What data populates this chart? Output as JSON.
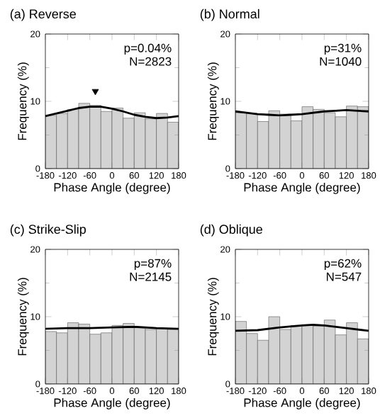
{
  "chart_data": [
    {
      "type": "histogram",
      "title": "(a) Reverse",
      "xlabel": "Phase Angle (degree)",
      "ylabel": "Frequency (%)",
      "annotations": [
        "p=0.04%",
        "N=2823"
      ],
      "bins": [
        -180,
        -150,
        -120,
        -90,
        -60,
        -30,
        0,
        30,
        60,
        90,
        120,
        150,
        180
      ],
      "xlim": [
        -180,
        180
      ],
      "ylim": [
        0,
        20
      ],
      "xticks": [
        -180,
        -120,
        -60,
        0,
        60,
        120,
        180
      ],
      "yticks": [
        0,
        10,
        20
      ],
      "series": [
        {
          "color": "#d3d3d3",
          "values": [
            7.9,
            8.2,
            8.8,
            9.7,
            9.4,
            8.5,
            9.0,
            7.5,
            8.3,
            7.4,
            8.2,
            6.9
          ]
        },
        {
          "type": "line",
          "color": "#000000",
          "x": [
            -180,
            -150,
            -120,
            -90,
            -60,
            -30,
            0,
            30,
            60,
            90,
            120,
            150,
            180
          ],
          "values": [
            7.8,
            8.2,
            8.6,
            9.0,
            9.2,
            9.2,
            8.9,
            8.5,
            8.0,
            7.7,
            7.5,
            7.6,
            7.8
          ]
        },
        {
          "type": "scatter",
          "color": "#000000",
          "marker": "triangle",
          "x": [
            -45
          ],
          "values": [
            11.5
          ]
        }
      ]
    },
    {
      "type": "histogram",
      "title": "(b) Normal",
      "xlabel": "Phase Angle (degree)",
      "ylabel": "Frequency (%)",
      "annotations": [
        "p=31%",
        "N=1040"
      ],
      "bins": [
        -180,
        -150,
        -120,
        -90,
        -60,
        -30,
        0,
        30,
        60,
        90,
        120,
        150,
        180
      ],
      "xlim": [
        -180,
        180
      ],
      "ylim": [
        0,
        20
      ],
      "xticks": [
        -180,
        -120,
        -60,
        0,
        60,
        120,
        180
      ],
      "yticks": [
        0,
        10,
        20
      ],
      "series": [
        {
          "color": "#d3d3d3",
          "values": [
            8.3,
            8.2,
            7.0,
            8.6,
            8.1,
            7.1,
            9.2,
            8.8,
            8.3,
            7.7,
            9.3,
            9.2
          ]
        },
        {
          "type": "line",
          "color": "#000000",
          "x": [
            -180,
            -150,
            -120,
            -90,
            -60,
            -30,
            0,
            30,
            60,
            90,
            120,
            150,
            180
          ],
          "values": [
            8.5,
            8.3,
            8.1,
            8.0,
            7.9,
            8.0,
            8.1,
            8.3,
            8.5,
            8.6,
            8.7,
            8.6,
            8.5
          ]
        }
      ]
    },
    {
      "type": "histogram",
      "title": "(c) Strike-Slip",
      "xlabel": "Phase Angle (degree)",
      "ylabel": "Frequency (%)",
      "annotations": [
        "p=87%",
        "N=2145"
      ],
      "bins": [
        -180,
        -150,
        -120,
        -90,
        -60,
        -30,
        0,
        30,
        60,
        90,
        120,
        150,
        180
      ],
      "xlim": [
        -180,
        180
      ],
      "ylim": [
        0,
        20
      ],
      "xticks": [
        -180,
        -120,
        -60,
        0,
        60,
        120,
        180
      ],
      "yticks": [
        0,
        10,
        20
      ],
      "series": [
        {
          "color": "#d3d3d3",
          "values": [
            7.8,
            7.6,
            9.1,
            8.9,
            7.4,
            7.6,
            8.7,
            9.0,
            8.4,
            8.1,
            8.2,
            8.1
          ]
        },
        {
          "type": "line",
          "color": "#000000",
          "x": [
            -180,
            -120,
            -60,
            0,
            60,
            120,
            180
          ],
          "values": [
            8.2,
            8.3,
            8.3,
            8.4,
            8.5,
            8.3,
            8.2
          ]
        }
      ]
    },
    {
      "type": "histogram",
      "title": "(d) Oblique",
      "xlabel": "Phase Angle (degree)",
      "ylabel": "Frequency (%)",
      "annotations": [
        "p=62%",
        "N=547"
      ],
      "bins": [
        -180,
        -150,
        -120,
        -90,
        -60,
        -30,
        0,
        30,
        60,
        90,
        120,
        150,
        180
      ],
      "xlim": [
        -180,
        180
      ],
      "ylim": [
        0,
        20
      ],
      "xticks": [
        -180,
        -120,
        -60,
        0,
        60,
        120,
        180
      ],
      "yticks": [
        0,
        10,
        20
      ],
      "series": [
        {
          "color": "#d3d3d3",
          "values": [
            9.3,
            7.5,
            6.5,
            10.0,
            8.1,
            8.7,
            8.8,
            8.6,
            9.5,
            7.3,
            9.1,
            6.7
          ]
        },
        {
          "type": "line",
          "color": "#000000",
          "x": [
            -180,
            -120,
            -60,
            0,
            30,
            60,
            120,
            180
          ],
          "values": [
            7.9,
            8.0,
            8.4,
            8.7,
            8.8,
            8.7,
            8.3,
            7.9
          ]
        }
      ]
    }
  ]
}
